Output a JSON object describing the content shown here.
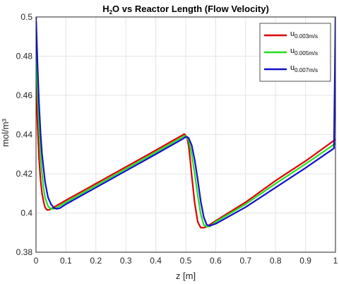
{
  "chart_data": {
    "type": "line",
    "title_main": "H",
    "title_sub": "2",
    "title_rest": "O vs Reactor Length (Flow Velocity)",
    "xlabel": "z [m]",
    "ylabel": "mol/m³",
    "xlim": [
      0,
      1
    ],
    "ylim": [
      0.38,
      0.5
    ],
    "grid": true,
    "legend_position": "top-right",
    "xticks": [
      "0",
      "0.1",
      "0.2",
      "0.3",
      "0.4",
      "0.5",
      "0.6",
      "0.7",
      "0.8",
      "0.9",
      "1"
    ],
    "yticks": [
      "0.38",
      "0.4",
      "0.42",
      "0.44",
      "0.46",
      "0.48",
      "0.5"
    ],
    "series": [
      {
        "name_main": "u",
        "name_sub": "0.003m/s",
        "color": "#dd0000",
        "x": [
          0,
          0.005,
          0.01,
          0.015,
          0.02,
          0.025,
          0.03,
          0.035,
          0.04,
          0.05,
          0.06,
          0.1,
          0.2,
          0.3,
          0.4,
          0.49,
          0.495,
          0.5,
          0.505,
          0.51,
          0.515,
          0.52,
          0.53,
          0.54,
          0.55,
          0.56,
          0.57,
          0.6,
          0.7,
          0.8,
          0.9,
          1.0
        ],
        "y": [
          0.47,
          0.445,
          0.428,
          0.417,
          0.41,
          0.406,
          0.403,
          0.4018,
          0.4015,
          0.402,
          0.403,
          0.4065,
          0.415,
          0.4235,
          0.432,
          0.4398,
          0.4403,
          0.4395,
          0.438,
          0.434,
          0.427,
          0.419,
          0.405,
          0.3955,
          0.3925,
          0.3925,
          0.393,
          0.396,
          0.4055,
          0.4165,
          0.4265,
          0.4375
        ]
      },
      {
        "name_main": "u",
        "name_sub": "0.005m/s",
        "color": "#22dd22",
        "x": [
          0,
          0.005,
          0.01,
          0.015,
          0.02,
          0.025,
          0.03,
          0.04,
          0.05,
          0.06,
          0.07,
          0.1,
          0.2,
          0.3,
          0.4,
          0.49,
          0.495,
          0.5,
          0.505,
          0.51,
          0.52,
          0.53,
          0.54,
          0.55,
          0.56,
          0.57,
          0.58,
          0.6,
          0.7,
          0.8,
          0.9,
          1.0
        ],
        "y": [
          0.485,
          0.463,
          0.444,
          0.43,
          0.42,
          0.413,
          0.408,
          0.4035,
          0.402,
          0.4022,
          0.4028,
          0.4055,
          0.414,
          0.4225,
          0.431,
          0.4388,
          0.4394,
          0.4392,
          0.4385,
          0.437,
          0.43,
          0.42,
          0.409,
          0.3995,
          0.394,
          0.393,
          0.3932,
          0.3955,
          0.4045,
          0.415,
          0.425,
          0.4355
        ]
      },
      {
        "name_main": "u",
        "name_sub": "0.007m/s",
        "color": "#1111cc",
        "x": [
          0,
          0.005,
          0.01,
          0.015,
          0.02,
          0.03,
          0.04,
          0.05,
          0.06,
          0.07,
          0.08,
          0.1,
          0.2,
          0.3,
          0.4,
          0.49,
          0.5,
          0.505,
          0.51,
          0.52,
          0.53,
          0.54,
          0.55,
          0.56,
          0.57,
          0.58,
          0.6,
          0.7,
          0.8,
          0.9,
          0.995,
          1.0
        ],
        "y": [
          0.5,
          0.476,
          0.456,
          0.441,
          0.43,
          0.416,
          0.408,
          0.4045,
          0.4025,
          0.4021,
          0.4025,
          0.4045,
          0.413,
          0.4215,
          0.43,
          0.4378,
          0.4388,
          0.4388,
          0.4382,
          0.4345,
          0.427,
          0.417,
          0.406,
          0.398,
          0.394,
          0.3935,
          0.3945,
          0.403,
          0.413,
          0.423,
          0.433,
          0.5
        ]
      }
    ]
  }
}
